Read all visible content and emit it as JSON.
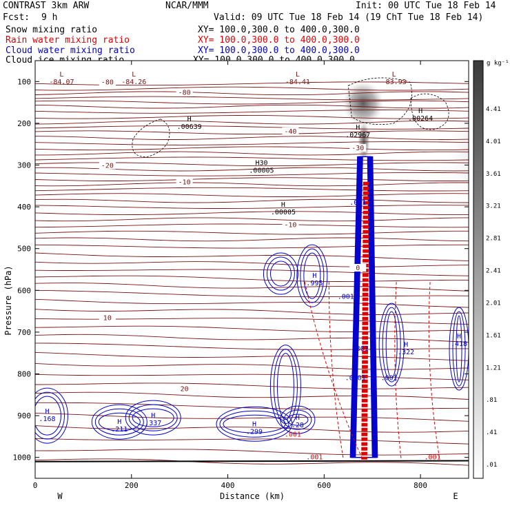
{
  "header": {
    "model": "CONTRAST  3km ARW",
    "org": "NCAR/MMM",
    "init": "Init: 00 UTC Tue 18 Feb 14",
    "fcst_label": "Fcst:",
    "fcst_value": "9 h",
    "valid": "Valid: 09 UTC Tue 18 Feb 14 (19 ChT Tue 18 Feb 14)"
  },
  "legend": [
    {
      "name": "Snow mixing ratio",
      "xy": "XY= 100.0,300.0 to 400.0,300.0",
      "color": "#000000"
    },
    {
      "name": "Rain water mixing ratio",
      "xy": "XY= 100.0,300.0 to 400.0,300.0",
      "color": "#dd0000"
    },
    {
      "name": "Cloud water mixing ratio",
      "xy": "XY= 100.0,300.0 to 400.0,300.0",
      "color": "#0000cc"
    },
    {
      "name": "Cloud ice mixing ratio",
      "xy": "XY= 100.0,300.0 to 400.0,300.0",
      "color": "#000000"
    }
  ],
  "colorbar": {
    "unit": "g kg⁻¹",
    "labels": [
      "4.41",
      "4.01",
      "3.61",
      "3.21",
      "2.81",
      "2.41",
      "2.01",
      "1.61",
      "1.21",
      ".81",
      ".41",
      ".01"
    ]
  },
  "chart_data": {
    "type": "contour",
    "xlabel": "Distance (km)",
    "ylabel": "Pressure (hPa)",
    "xlim": [
      0,
      900
    ],
    "ylim": [
      1050,
      50
    ],
    "x_ticks": [
      0,
      200,
      400,
      600,
      800
    ],
    "y_ticks": [
      100,
      200,
      300,
      400,
      500,
      600,
      700,
      800,
      900,
      1000
    ],
    "compass": {
      "left": "W",
      "right": "E"
    },
    "temperature_contours": [
      {
        "label": "-80",
        "p": 100
      },
      {
        "label": "-80",
        "p": 125
      },
      {
        "label": "-40",
        "p": 218
      },
      {
        "label": "-30",
        "p": 258
      },
      {
        "label": "-20",
        "p": 300
      },
      {
        "label": "-10",
        "p": 340
      },
      {
        "label": "-10",
        "p": 442
      },
      {
        "label": "0",
        "p": 545
      },
      {
        "label": "10",
        "p": 665
      },
      {
        "label": "20",
        "p": 835
      }
    ],
    "highs_lows": [
      {
        "mark": "L",
        "value": "-84.07",
        "x": 55,
        "p": 88
      },
      {
        "mark": "L",
        "value": "-84.26",
        "x": 205,
        "p": 88
      },
      {
        "mark": "L",
        "value": "-84.41",
        "x": 545,
        "p": 88
      },
      {
        "mark": "L",
        "value": "-83.93",
        "x": 745,
        "p": 88
      },
      {
        "mark": "H",
        "value": ".00639",
        "x": 320,
        "p": 195
      },
      {
        "mark": "H",
        "value": ".02967",
        "x": 670,
        "p": 215
      },
      {
        "mark": "H",
        "value": ".00264",
        "x": 800,
        "p": 175
      },
      {
        "mark": "H30",
        "value": ".00005",
        "x": 470,
        "p": 300
      },
      {
        "mark": "H",
        "value": ".00005",
        "x": 515,
        "p": 400
      },
      {
        "mark": "H",
        "value": ".995",
        "x": 580,
        "p": 570
      },
      {
        "mark": "H",
        "value": ".168",
        "x": 25,
        "p": 895
      },
      {
        "mark": "H",
        "value": ".211",
        "x": 175,
        "p": 920
      },
      {
        "mark": "H",
        "value": ".337",
        "x": 245,
        "p": 905
      },
      {
        "mark": "H",
        "value": ".299",
        "x": 455,
        "p": 925
      },
      {
        "mark": "H",
        "value": ".28",
        "x": 545,
        "p": 910
      },
      {
        "mark": "H",
        "value": ".322",
        "x": 770,
        "p": 735
      },
      {
        "mark": "H",
        "value": ".418",
        "x": 880,
        "p": 715
      }
    ],
    "contour_labels": [
      {
        "value": ".001",
        "x": 670,
        "p": 395
      },
      {
        "value": ".001",
        "x": 645,
        "p": 620
      },
      {
        "value": ".301",
        "x": 675,
        "p": 745
      },
      {
        "value": ".0001",
        "x": 665,
        "p": 815
      },
      {
        "value": ".001",
        "x": 735,
        "p": 815
      },
      {
        "value": ".001",
        "x": 535,
        "p": 950
      },
      {
        "value": ".001",
        "x": 580,
        "p": 1005
      },
      {
        "value": ".001",
        "x": 825,
        "p": 1005
      }
    ]
  }
}
